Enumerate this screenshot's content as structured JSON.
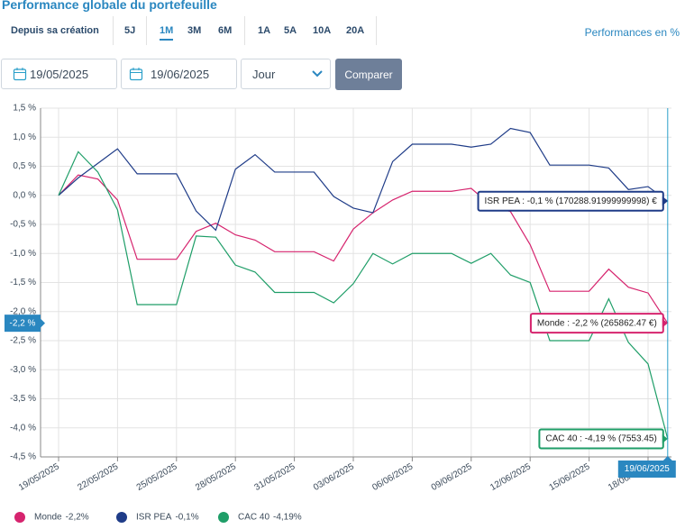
{
  "header": {
    "title": "Performance globale du portefeuille",
    "periods": [
      "Depuis sa création",
      "5J",
      "1M",
      "3M",
      "6M",
      "1A",
      "5A",
      "10A",
      "20A"
    ],
    "active": "1M",
    "unit_label": "Performances en %"
  },
  "controls": {
    "start_date": "19/05/2025",
    "end_date": "19/06/2025",
    "granularity": "Jour",
    "button": "Comparer"
  },
  "chart_data": {
    "type": "line",
    "categories": [
      "19/05/2025",
      null,
      null,
      "22/05/2025",
      null,
      null,
      "25/05/2025",
      null,
      null,
      "28/05/2025",
      null,
      null,
      "31/05/2025",
      null,
      null,
      "03/06/2025",
      null,
      null,
      "06/06/2025",
      null,
      null,
      "09/06/2025",
      null,
      null,
      "12/06/2025",
      null,
      null,
      "15/06/2025",
      null,
      null,
      "18/06/2025",
      null
    ],
    "series": [
      {
        "name": "Monde",
        "color": "#d6246e",
        "legend_label": "-2,2%",
        "tooltip": "Monde : -2,2 % (265862.47 €)",
        "values": [
          0,
          0.35,
          0.28,
          -0.08,
          -1.1,
          -1.1,
          -1.1,
          -0.62,
          -0.48,
          -0.68,
          -0.77,
          -0.97,
          -0.97,
          -0.97,
          -1.13,
          -0.58,
          -0.3,
          -0.08,
          0.07,
          0.07,
          0.07,
          0.12,
          -0.17,
          -0.28,
          -0.85,
          -1.65,
          -1.65,
          -1.65,
          -1.27,
          -1.58,
          -1.68,
          -2.2
        ]
      },
      {
        "name": "ISR PEA",
        "color": "#1f3c88",
        "legend_label": "-0,1%",
        "tooltip": "ISR PEA : -0,1 % (170288.91999999998) €",
        "values": [
          0,
          0.3,
          0.55,
          0.8,
          0.37,
          0.37,
          0.37,
          -0.27,
          -0.6,
          0.45,
          0.7,
          0.4,
          0.4,
          0.4,
          -0.02,
          -0.22,
          -0.3,
          0.58,
          0.88,
          0.88,
          0.88,
          0.83,
          0.88,
          1.15,
          1.08,
          0.52,
          0.52,
          0.52,
          0.47,
          0.1,
          0.15,
          -0.1
        ]
      },
      {
        "name": "CAC 40",
        "color": "#1f9e68",
        "legend_label": "-4,19%",
        "tooltip": "CAC 40 : -4,19 % (7553.45)",
        "values": [
          0,
          0.75,
          0.4,
          -0.25,
          -1.88,
          -1.88,
          -1.88,
          -0.7,
          -0.72,
          -1.2,
          -1.32,
          -1.67,
          -1.67,
          -1.67,
          -1.85,
          -1.52,
          -1.0,
          -1.18,
          -1.0,
          -1.0,
          -1.0,
          -1.17,
          -1.0,
          -1.37,
          -1.5,
          -2.5,
          -2.5,
          -2.5,
          -1.78,
          -2.53,
          -2.9,
          -4.19
        ]
      }
    ],
    "ylim": [
      -4.5,
      1.5
    ],
    "yticks": [
      {
        "value": 1.5,
        "label": "1,5 %"
      },
      {
        "value": 1,
        "label": "1,0 %"
      },
      {
        "value": 0.5,
        "label": "0,5 %"
      },
      {
        "value": 0,
        "label": "0,0 %"
      },
      {
        "value": -0.5,
        "label": "-0,5 %"
      },
      {
        "value": -1,
        "label": "-1,0 %"
      },
      {
        "value": -1.5,
        "label": "-1,5 %"
      },
      {
        "value": -2,
        "label": "-2,0 %"
      },
      {
        "value": -2.5,
        "label": "-2,5 %"
      },
      {
        "value": -3,
        "label": "-3,0 %"
      },
      {
        "value": -3.5,
        "label": "-3,5 %"
      },
      {
        "value": -4,
        "label": "-4,0 %"
      },
      {
        "value": -4.5,
        "label": "-4,5 %"
      }
    ],
    "grid": true,
    "cursor": {
      "y_label": "-2,2 %",
      "x_label": "19/06/2025"
    }
  }
}
